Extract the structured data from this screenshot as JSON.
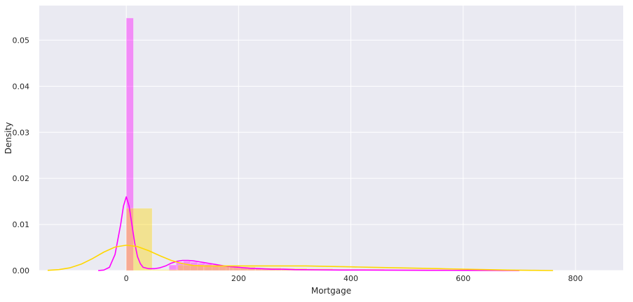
{
  "chart_data": {
    "type": "bar",
    "subtype": "histogram-with-kde",
    "title": "",
    "xlabel": "Mortgage",
    "ylabel": "Density",
    "xlim": [
      -155,
      885
    ],
    "ylim": [
      0,
      0.0575
    ],
    "xticks": [
      0,
      200,
      400,
      600,
      800
    ],
    "yticks": [
      0.0,
      0.01,
      0.02,
      0.03,
      0.04,
      0.05
    ],
    "ytick_labels": [
      "0.00",
      "0.01",
      "0.02",
      "0.03",
      "0.04",
      "0.05"
    ],
    "grid": true,
    "legend": "none",
    "background_color": "#eaeaf2",
    "grid_color": "#ffffff",
    "series": [
      {
        "color": "#ff00ff",
        "bar_opacity": 0.4,
        "bins": [
          {
            "x0": 0,
            "x1": 12.7,
            "density": 0.0548
          },
          {
            "x0": 76.2,
            "x1": 88.9,
            "density": 0.0012
          },
          {
            "x0": 88.9,
            "x1": 101.6,
            "density": 0.0018
          },
          {
            "x0": 101.6,
            "x1": 114.3,
            "density": 0.002
          },
          {
            "x0": 114.3,
            "x1": 127.0,
            "density": 0.0018
          },
          {
            "x0": 127.0,
            "x1": 139.7,
            "density": 0.0016
          },
          {
            "x0": 139.7,
            "x1": 152.4,
            "density": 0.0014
          },
          {
            "x0": 152.4,
            "x1": 165.1,
            "density": 0.0012
          },
          {
            "x0": 165.1,
            "x1": 177.8,
            "density": 0.001
          },
          {
            "x0": 177.8,
            "x1": 190.5,
            "density": 0.0009
          },
          {
            "x0": 190.5,
            "x1": 203.2,
            "density": 0.0008
          },
          {
            "x0": 203.2,
            "x1": 215.9,
            "density": 0.0007
          },
          {
            "x0": 215.9,
            "x1": 228.6,
            "density": 0.0006
          },
          {
            "x0": 228.6,
            "x1": 241.3,
            "density": 0.0005
          },
          {
            "x0": 241.3,
            "x1": 254.0,
            "density": 0.0004
          },
          {
            "x0": 254.0,
            "x1": 266.7,
            "density": 0.0003
          },
          {
            "x0": 266.7,
            "x1": 292.1,
            "density": 0.0002
          },
          {
            "x0": 292.1,
            "x1": 355.6,
            "density": 0.0001
          },
          {
            "x0": 355.6,
            "x1": 635.0,
            "density": 5e-05
          }
        ],
        "kde": {
          "x": [
            -50,
            -40,
            -30,
            -20,
            -10,
            -5,
            0,
            5,
            10,
            15,
            20,
            25,
            30,
            40,
            50,
            60,
            70,
            80,
            90,
            100,
            110,
            120,
            130,
            140,
            150,
            160,
            170,
            180,
            190,
            200,
            220,
            240,
            260,
            280,
            300,
            340,
            380,
            420,
            460,
            500,
            540,
            580,
            620,
            660,
            700
          ],
          "y": [
            0.0,
            0.0001,
            0.0007,
            0.0035,
            0.01,
            0.014,
            0.016,
            0.014,
            0.01,
            0.006,
            0.003,
            0.0015,
            0.0007,
            0.0004,
            0.0004,
            0.0006,
            0.001,
            0.0016,
            0.002,
            0.0022,
            0.0022,
            0.0021,
            0.0019,
            0.0017,
            0.0015,
            0.0013,
            0.0011,
            0.0009,
            0.0008,
            0.0007,
            0.0005,
            0.0004,
            0.0003,
            0.0003,
            0.0002,
            0.00015,
            0.0001,
            0.0001,
            8e-05,
            6e-05,
            5e-05,
            4e-05,
            3e-05,
            2e-05,
            0.0
          ]
        }
      },
      {
        "color": "#ffd700",
        "bar_opacity": 0.4,
        "bins": [
          {
            "x0": 0,
            "x1": 46,
            "density": 0.0135
          },
          {
            "x0": 46,
            "x1": 92,
            "density": 0.0002
          },
          {
            "x0": 92,
            "x1": 138,
            "density": 0.0012
          },
          {
            "x0": 138,
            "x1": 184,
            "density": 0.001
          },
          {
            "x0": 184,
            "x1": 230,
            "density": 0.0008
          },
          {
            "x0": 230,
            "x1": 276,
            "density": 0.0006
          },
          {
            "x0": 276,
            "x1": 322,
            "density": 0.0005
          },
          {
            "x0": 322,
            "x1": 368,
            "density": 0.0004
          },
          {
            "x0": 368,
            "x1": 414,
            "density": 0.0003
          },
          {
            "x0": 414,
            "x1": 460,
            "density": 0.0003
          },
          {
            "x0": 460,
            "x1": 506,
            "density": 0.0002
          },
          {
            "x0": 506,
            "x1": 552,
            "density": 0.0002
          },
          {
            "x0": 552,
            "x1": 598,
            "density": 0.0002
          },
          {
            "x0": 598,
            "x1": 644,
            "density": 0.0001
          },
          {
            "x0": 644,
            "x1": 690,
            "density": 0.0001
          }
        ],
        "kde": {
          "x": [
            -140,
            -120,
            -100,
            -80,
            -60,
            -40,
            -20,
            0,
            20,
            40,
            60,
            80,
            100,
            120,
            140,
            160,
            180,
            200,
            240,
            280,
            320,
            360,
            400,
            440,
            480,
            520,
            560,
            600,
            640,
            680,
            720,
            760
          ],
          "y": [
            5e-05,
            0.0002,
            0.0006,
            0.0014,
            0.0026,
            0.004,
            0.0051,
            0.0055,
            0.0052,
            0.0043,
            0.0032,
            0.0022,
            0.0015,
            0.0011,
            0.001,
            0.001,
            0.001,
            0.001,
            0.001,
            0.001,
            0.001,
            0.0009,
            0.0008,
            0.0007,
            0.0006,
            0.0005,
            0.0004,
            0.0003,
            0.0002,
            0.0001,
            5e-05,
            0.0
          ]
        }
      }
    ]
  }
}
